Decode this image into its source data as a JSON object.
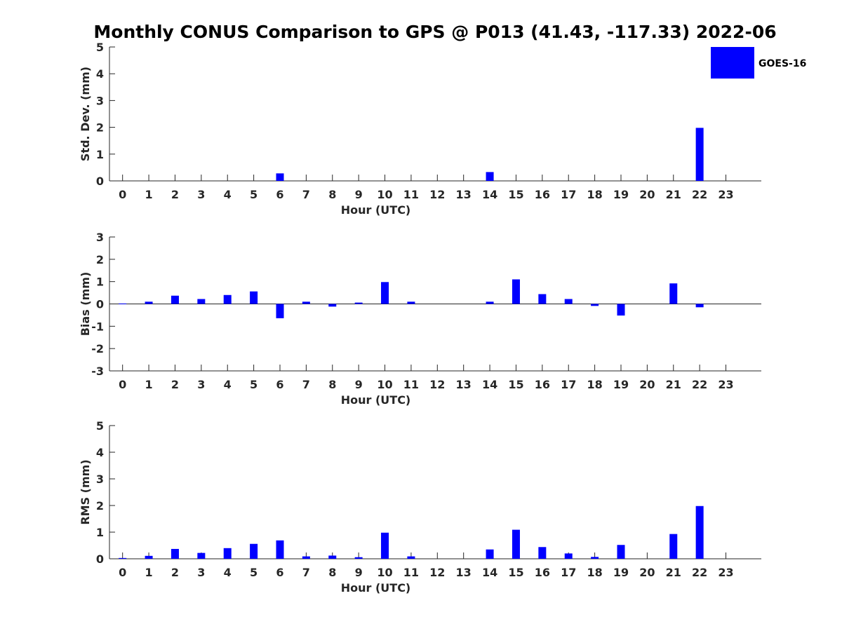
{
  "title": "Monthly CONUS Comparison to GPS @ P013 (41.43, -117.33) 2022-06",
  "colors": {
    "bar": "#0000ff",
    "axis": "#262626"
  },
  "legend": {
    "label": "GOES-16",
    "placement": "top-right"
  },
  "chart_data": [
    {
      "type": "bar",
      "xlabel": "Hour (UTC)",
      "ylabel": "Std. Dev. (mm)",
      "ylim": [
        0,
        5
      ],
      "yticks": [
        0,
        1,
        2,
        3,
        4,
        5
      ],
      "categories": [
        "0",
        "1",
        "2",
        "3",
        "4",
        "5",
        "6",
        "7",
        "8",
        "9",
        "10",
        "11",
        "12",
        "13",
        "14",
        "15",
        "16",
        "17",
        "18",
        "19",
        "20",
        "21",
        "22",
        "23"
      ],
      "series": [
        {
          "name": "GOES-16",
          "values": [
            0,
            0,
            0,
            0,
            0,
            0,
            0.28,
            0,
            0,
            0,
            0,
            0,
            0,
            0,
            0.33,
            0,
            0,
            0,
            0,
            0,
            0,
            0,
            1.98,
            0
          ]
        }
      ]
    },
    {
      "type": "bar",
      "xlabel": "Hour (UTC)",
      "ylabel": "Bias (mm)",
      "ylim": [
        -3,
        3
      ],
      "yticks": [
        -3,
        -2,
        -1,
        0,
        1,
        2,
        3
      ],
      "categories": [
        "0",
        "1",
        "2",
        "3",
        "4",
        "5",
        "6",
        "7",
        "8",
        "9",
        "10",
        "11",
        "12",
        "13",
        "14",
        "15",
        "16",
        "17",
        "18",
        "19",
        "20",
        "21",
        "22",
        "23"
      ],
      "series": [
        {
          "name": "GOES-16",
          "values": [
            0.02,
            0.1,
            0.37,
            0.22,
            0.4,
            0.56,
            -0.64,
            0.1,
            -0.12,
            0.06,
            0.98,
            0.1,
            0,
            0,
            0.1,
            1.1,
            0.44,
            0.22,
            -0.09,
            -0.52,
            0,
            0.92,
            -0.15,
            0
          ]
        }
      ]
    },
    {
      "type": "bar",
      "xlabel": "Hour (UTC)",
      "ylabel": "RMS (mm)",
      "ylim": [
        0,
        5
      ],
      "yticks": [
        0,
        1,
        2,
        3,
        4,
        5
      ],
      "categories": [
        "0",
        "1",
        "2",
        "3",
        "4",
        "5",
        "6",
        "7",
        "8",
        "9",
        "10",
        "11",
        "12",
        "13",
        "14",
        "15",
        "16",
        "17",
        "18",
        "19",
        "20",
        "21",
        "22",
        "23"
      ],
      "series": [
        {
          "name": "GOES-16",
          "values": [
            0.03,
            0.11,
            0.37,
            0.22,
            0.4,
            0.56,
            0.69,
            0.09,
            0.12,
            0.06,
            0.98,
            0.09,
            0,
            0,
            0.35,
            1.09,
            0.44,
            0.2,
            0.07,
            0.52,
            0,
            0.93,
            1.98,
            0
          ]
        }
      ]
    }
  ]
}
